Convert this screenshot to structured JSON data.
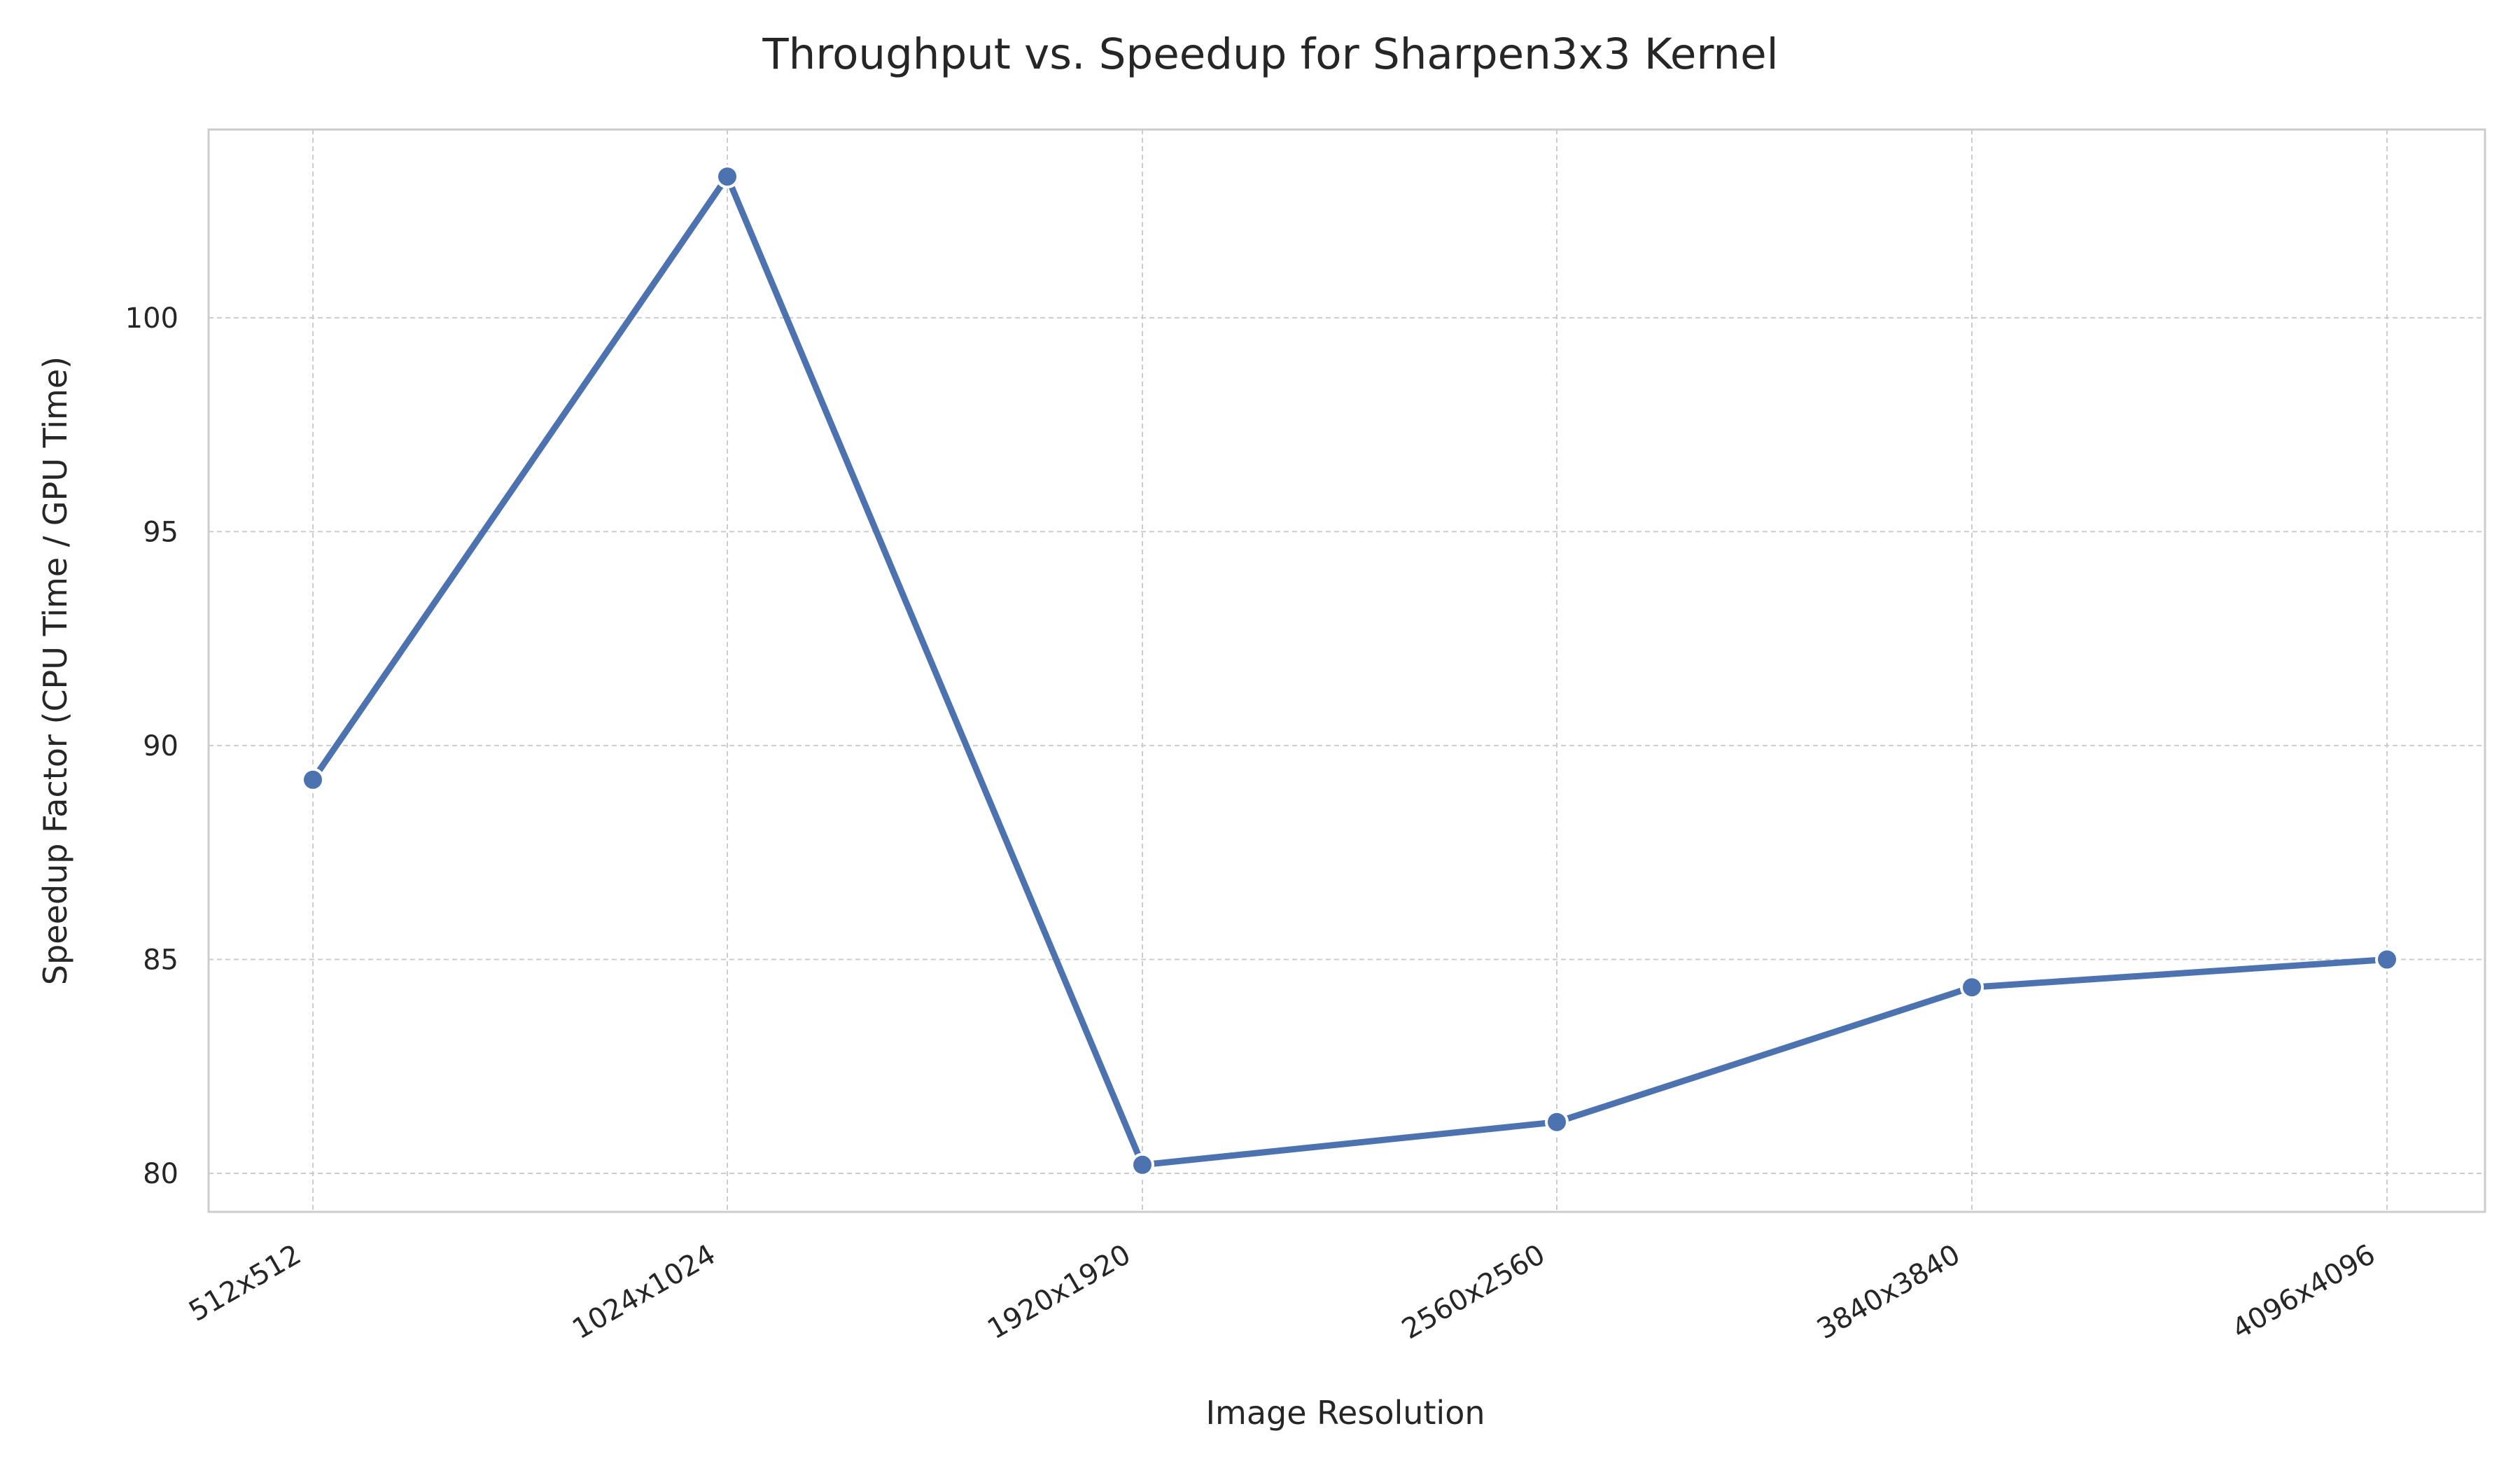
{
  "chart_data": {
    "type": "line",
    "title": "Throughput vs. Speedup for Sharpen3x3 Kernel",
    "xlabel": "Image Resolution",
    "ylabel": "Speedup Factor (CPU Time / GPU Time)",
    "categories": [
      "512x512",
      "1024x1024",
      "1920x1920",
      "2560x2560",
      "3840x3840",
      "4096x4096"
    ],
    "series": [
      {
        "values": [
          89.2,
          103.3,
          80.2,
          81.2,
          84.35,
          85.0
        ]
      }
    ],
    "ylim": [
      79.1,
      104.4
    ],
    "yticks": [
      80,
      85,
      90,
      95,
      100
    ],
    "ytick_labels": [
      "80",
      "85",
      "90",
      "95",
      "100"
    ],
    "grid": true,
    "grid_style": "dashed",
    "legend": false,
    "colors": {
      "line": "#4c72b0",
      "marker": "#4c72b0",
      "marker_edge": "#ffffff",
      "grid": "#cccccc",
      "frame": "#cccccc",
      "text": "#262626",
      "background": "#ffffff"
    }
  }
}
